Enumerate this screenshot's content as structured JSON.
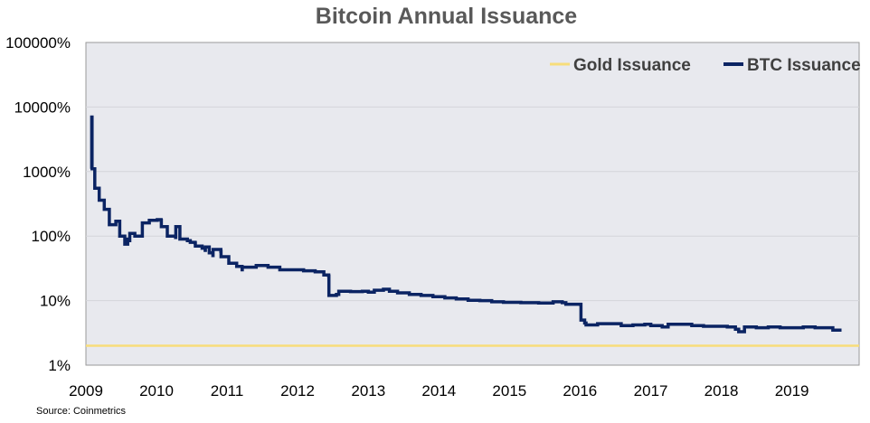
{
  "chart_data": {
    "type": "line",
    "title": "Bitcoin Annual Issuance",
    "xlabel": "",
    "ylabel": "",
    "y_scale": "log",
    "ylim_percent": [
      1,
      100000
    ],
    "y_ticks": [
      "100000%",
      "10000%",
      "1000%",
      "100%",
      "10%",
      "1%"
    ],
    "x_ticks": [
      "2009",
      "2010",
      "2011",
      "2012",
      "2013",
      "2014",
      "2015",
      "2016",
      "2017",
      "2018",
      "2019"
    ],
    "xlim": [
      "2009-01-01",
      "2019-12-15"
    ],
    "grid": "horizontal",
    "legend_placement": "top-right",
    "background": "#e8e9ee",
    "series": [
      {
        "name": "Gold Issuance",
        "color": "#f7dd7a",
        "points": [
          [
            "2009-01-01",
            2.0
          ],
          [
            "2019-12-15",
            2.0
          ]
        ]
      },
      {
        "name": "BTC Issuance",
        "color": "#0b2463",
        "points": [
          [
            "2009-01-30",
            1100
          ],
          [
            "2009-01-31",
            7000
          ],
          [
            "2009-02-02",
            1100
          ],
          [
            "2009-02-15",
            1100
          ],
          [
            "2009-02-16",
            550
          ],
          [
            "2009-03-10",
            550
          ],
          [
            "2009-03-11",
            360
          ],
          [
            "2009-04-05",
            360
          ],
          [
            "2009-04-06",
            260
          ],
          [
            "2009-05-01",
            260
          ],
          [
            "2009-05-02",
            150
          ],
          [
            "2009-06-05",
            170
          ],
          [
            "2009-06-25",
            100
          ],
          [
            "2009-07-20",
            100
          ],
          [
            "2009-07-21",
            75
          ],
          [
            "2009-08-05",
            90
          ],
          [
            "2009-08-15",
            85
          ],
          [
            "2009-08-16",
            110
          ],
          [
            "2009-09-10",
            110
          ],
          [
            "2009-09-11",
            100
          ],
          [
            "2009-10-15",
            100
          ],
          [
            "2009-10-20",
            160
          ],
          [
            "2009-11-20",
            160
          ],
          [
            "2009-11-25",
            175
          ],
          [
            "2010-01-05",
            180
          ],
          [
            "2010-01-25",
            175
          ],
          [
            "2010-01-26",
            140
          ],
          [
            "2010-02-25",
            140
          ],
          [
            "2010-02-26",
            100
          ],
          [
            "2010-04-10",
            95
          ],
          [
            "2010-04-11",
            140
          ],
          [
            "2010-05-01",
            140
          ],
          [
            "2010-05-02",
            90
          ],
          [
            "2010-06-10",
            85
          ],
          [
            "2010-06-25",
            80
          ],
          [
            "2010-07-20",
            78
          ],
          [
            "2010-07-21",
            70
          ],
          [
            "2010-08-25",
            65
          ],
          [
            "2010-09-10",
            60
          ],
          [
            "2010-09-11",
            68
          ],
          [
            "2010-09-30",
            68
          ],
          [
            "2010-10-01",
            55
          ],
          [
            "2010-10-20",
            50
          ],
          [
            "2010-10-21",
            62
          ],
          [
            "2010-11-30",
            58
          ],
          [
            "2010-12-01",
            48
          ],
          [
            "2011-01-10",
            38
          ],
          [
            "2011-02-20",
            34
          ],
          [
            "2011-03-20",
            30
          ],
          [
            "2011-03-21",
            33
          ],
          [
            "2011-06-01",
            35
          ],
          [
            "2011-08-01",
            33
          ],
          [
            "2011-10-01",
            30
          ],
          [
            "2011-12-01",
            30
          ],
          [
            "2012-02-01",
            29
          ],
          [
            "2012-04-01",
            28
          ],
          [
            "2012-05-15",
            28
          ],
          [
            "2012-05-16",
            25
          ],
          [
            "2012-06-10",
            24
          ],
          [
            "2012-06-11",
            12
          ],
          [
            "2012-07-20",
            12.5
          ],
          [
            "2012-08-01",
            14
          ],
          [
            "2012-10-01",
            13.8
          ],
          [
            "2012-12-01",
            14
          ],
          [
            "2013-01-01",
            13.5
          ],
          [
            "2013-02-01",
            14.5
          ],
          [
            "2013-03-20",
            15
          ],
          [
            "2013-04-20",
            14
          ],
          [
            "2013-06-01",
            13.2
          ],
          [
            "2013-08-01",
            12.5
          ],
          [
            "2013-10-01",
            12
          ],
          [
            "2013-12-01",
            11.5
          ],
          [
            "2014-02-01",
            11
          ],
          [
            "2014-04-01",
            10.6
          ],
          [
            "2014-06-01",
            10.1
          ],
          [
            "2014-08-01",
            10
          ],
          [
            "2014-10-01",
            9.6
          ],
          [
            "2014-12-01",
            9.4
          ],
          [
            "2015-03-01",
            9.3
          ],
          [
            "2015-06-01",
            9.2
          ],
          [
            "2015-08-15",
            9.6
          ],
          [
            "2015-10-01",
            9.3
          ],
          [
            "2015-10-20",
            8.8
          ],
          [
            "2016-01-05",
            8.7
          ],
          [
            "2016-01-06",
            5.0
          ],
          [
            "2016-01-25",
            4.5
          ],
          [
            "2016-02-01",
            4.2
          ],
          [
            "2016-04-01",
            4.4
          ],
          [
            "2016-06-01",
            4.4
          ],
          [
            "2016-08-01",
            4.1
          ],
          [
            "2016-10-01",
            4.2
          ],
          [
            "2016-12-01",
            4.3
          ],
          [
            "2017-01-01",
            4.1
          ],
          [
            "2017-03-01",
            3.9
          ],
          [
            "2017-04-01",
            4.3
          ],
          [
            "2017-06-01",
            4.3
          ],
          [
            "2017-08-01",
            4.1
          ],
          [
            "2017-10-01",
            4.0
          ],
          [
            "2017-12-01",
            4.0
          ],
          [
            "2018-02-01",
            3.9
          ],
          [
            "2018-03-15",
            3.6
          ],
          [
            "2018-04-01",
            3.3
          ],
          [
            "2018-05-01",
            3.9
          ],
          [
            "2018-07-01",
            3.8
          ],
          [
            "2018-09-01",
            3.9
          ],
          [
            "2018-11-01",
            3.8
          ],
          [
            "2019-01-01",
            3.8
          ],
          [
            "2019-03-01",
            3.9
          ],
          [
            "2019-05-01",
            3.8
          ],
          [
            "2019-07-01",
            3.8
          ],
          [
            "2019-08-01",
            3.5
          ],
          [
            "2019-09-15",
            3.5
          ]
        ]
      }
    ]
  },
  "source_note": "Source: Coinmetrics"
}
